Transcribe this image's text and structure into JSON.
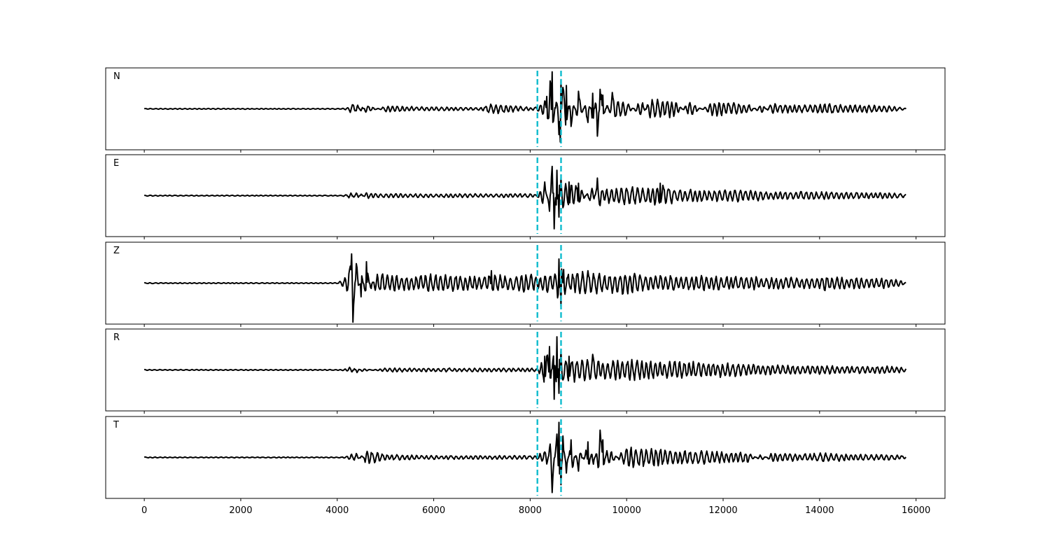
{
  "chart_data": {
    "type": "line",
    "xlim": [
      -800,
      16600
    ],
    "x_ticks": [
      0,
      2000,
      4000,
      6000,
      8000,
      10000,
      12000,
      14000,
      16000
    ],
    "x_tick_labels": [
      "0",
      "2000",
      "4000",
      "6000",
      "8000",
      "10000",
      "12000",
      "14000",
      "16000"
    ],
    "x_range": [
      0,
      15800
    ],
    "ylim": [
      -1.05,
      1.05
    ],
    "grid": false,
    "shared_x": true,
    "trace_color": "#000000",
    "pick_color": "#17becf",
    "picks": [
      8150,
      8640
    ],
    "panels": [
      {
        "label": "N",
        "series": {
          "name": "N",
          "x": [
            0,
            1000,
            2000,
            3000,
            4000,
            4200,
            4300,
            4350,
            4400,
            4500,
            4600,
            5000,
            6000,
            7000,
            7200,
            8000,
            8150,
            8350,
            8450,
            8500,
            8550,
            8620,
            8640,
            8680,
            8750,
            8850,
            9000,
            9200,
            9300,
            9400,
            9450,
            9500,
            9600,
            9700,
            9850,
            10000,
            10300,
            10500,
            11000,
            11300,
            11800,
            12000,
            12500,
            12800,
            13000,
            13500,
            14000,
            14100,
            14500,
            15000,
            15500,
            15800
          ],
          "y": [
            0,
            0,
            0,
            0,
            0,
            0.03,
            0.15,
            0.2,
            -0.18,
            0.1,
            -0.12,
            0.08,
            0.05,
            0.04,
            0.15,
            0.04,
            0.05,
            0.32,
            0.95,
            0.25,
            -0.3,
            -0.85,
            0.75,
            0.55,
            0.6,
            -0.45,
            0.45,
            -0.35,
            0.4,
            -0.7,
            0.5,
            0.35,
            -0.15,
            0.42,
            0.25,
            0.2,
            -0.25,
            0.3,
            0.22,
            -0.2,
            0.2,
            0.18,
            0.15,
            -0.15,
            0.15,
            0.1,
            0.12,
            0.16,
            0.1,
            0.1,
            0.08,
            0.02
          ]
        }
      },
      {
        "label": "E",
        "series": {
          "name": "E",
          "x": [
            0,
            1000,
            2000,
            3000,
            4000,
            4200,
            4300,
            4350,
            4400,
            4500,
            4600,
            5000,
            6000,
            7000,
            8000,
            8150,
            8300,
            8400,
            8450,
            8500,
            8550,
            8600,
            8640,
            8700,
            8800,
            9000,
            9300,
            9400,
            9500,
            10000,
            10500,
            10700,
            11000,
            11500,
            12000,
            12500,
            12800,
            13000,
            13500,
            14000,
            14500,
            15000,
            15500,
            15800
          ],
          "y": [
            0,
            0,
            0,
            0,
            0,
            0.03,
            0.1,
            -0.08,
            0.12,
            -0.06,
            0.08,
            0.06,
            0.05,
            0.05,
            0.05,
            0.03,
            0.35,
            -0.4,
            0.75,
            -0.85,
            0.65,
            -0.55,
            0.45,
            0.3,
            0.35,
            0.32,
            -0.3,
            0.45,
            0.2,
            0.25,
            0.22,
            0.32,
            0.2,
            0.15,
            0.15,
            0.18,
            0.12,
            0.1,
            0.12,
            0.1,
            0.1,
            0.08,
            0.08,
            0.04
          ]
        }
      },
      {
        "label": "Z",
        "series": {
          "name": "Z",
          "x": [
            0,
            1000,
            2000,
            3000,
            4000,
            4150,
            4250,
            4300,
            4320,
            4400,
            4500,
            4600,
            4700,
            4800,
            5000,
            5500,
            6000,
            6500,
            7000,
            7200,
            7500,
            8000,
            8150,
            8300,
            8500,
            8600,
            8640,
            8700,
            8800,
            9000,
            9200,
            9500,
            10000,
            10500,
            11000,
            11500,
            12000,
            12500,
            13000,
            13500,
            14000,
            14100,
            14500,
            15000,
            15500,
            15800
          ],
          "y": [
            0,
            0,
            0,
            0,
            0,
            0.15,
            0.35,
            0.75,
            -1.0,
            0.5,
            -0.35,
            0.55,
            -0.2,
            0.3,
            0.25,
            0.2,
            0.25,
            0.22,
            0.18,
            0.32,
            0.2,
            0.25,
            0.15,
            0.3,
            0.22,
            0.62,
            -0.6,
            0.35,
            0.25,
            0.28,
            0.32,
            0.25,
            0.3,
            0.22,
            0.2,
            0.2,
            0.18,
            0.18,
            0.16,
            0.16,
            0.15,
            0.22,
            0.15,
            0.14,
            0.14,
            0.02
          ]
        }
      },
      {
        "label": "R",
        "series": {
          "name": "R",
          "x": [
            0,
            1000,
            2000,
            3000,
            4000,
            4200,
            4300,
            4350,
            4400,
            4500,
            5000,
            6000,
            7000,
            8000,
            8150,
            8300,
            8400,
            8500,
            8550,
            8600,
            8640,
            8700,
            8800,
            9000,
            9300,
            9500,
            10000,
            10500,
            10900,
            11000,
            11500,
            12000,
            12500,
            13000,
            13500,
            14000,
            14500,
            15000,
            15500,
            15800
          ],
          "y": [
            0,
            0,
            0,
            0,
            0,
            0.03,
            0.1,
            -0.08,
            0.1,
            -0.05,
            0.06,
            0.05,
            0.05,
            0.05,
            0.03,
            0.35,
            0.6,
            -0.75,
            0.85,
            -0.6,
            0.5,
            0.3,
            0.35,
            0.3,
            0.4,
            0.25,
            0.3,
            0.25,
            0.22,
            0.3,
            0.2,
            0.2,
            0.15,
            0.14,
            0.12,
            0.12,
            0.1,
            0.1,
            0.1,
            0.05
          ]
        }
      },
      {
        "label": "T",
        "series": {
          "name": "T",
          "x": [
            0,
            1000,
            2000,
            3000,
            4000,
            4200,
            4300,
            4350,
            4400,
            4500,
            4600,
            5000,
            6000,
            7000,
            8000,
            8150,
            8350,
            8450,
            8550,
            8600,
            8640,
            8680,
            8750,
            8850,
            9000,
            9200,
            9300,
            9450,
            9500,
            9600,
            10000,
            10500,
            11000,
            11500,
            12000,
            12500,
            12800,
            13000,
            13500,
            14000,
            14500,
            15000,
            15500,
            15800
          ],
          "y": [
            0,
            0,
            0,
            0,
            0,
            0.03,
            0.1,
            -0.12,
            0.15,
            -0.1,
            0.2,
            0.08,
            0.05,
            0.05,
            0.05,
            0.05,
            0.25,
            -0.9,
            0.6,
            0.9,
            -0.7,
            0.55,
            -0.4,
            0.45,
            -0.35,
            0.4,
            -0.3,
            0.7,
            0.45,
            -0.3,
            0.3,
            0.25,
            0.2,
            0.18,
            0.15,
            0.15,
            -0.1,
            0.12,
            0.1,
            0.12,
            0.1,
            0.08,
            0.08,
            0.03
          ]
        }
      }
    ]
  }
}
